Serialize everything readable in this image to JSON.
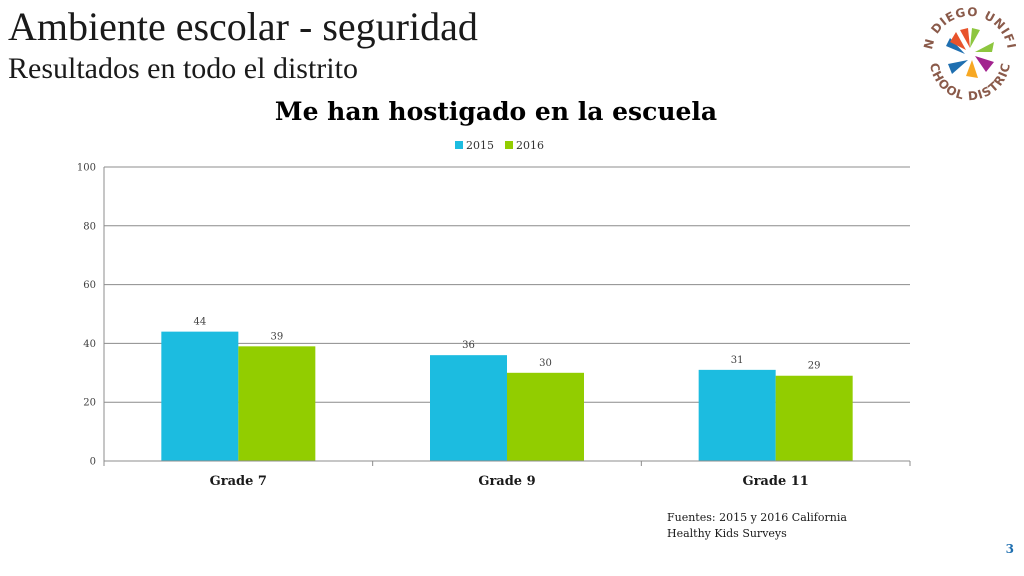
{
  "slide": {
    "title": "Ambiente escolar - seguridad",
    "subtitle": "Resultados en todo el distrito",
    "source_line1": "Fuentes: 2015 y 2016 California",
    "source_line2": "Healthy Kids Surveys",
    "page_number": "3"
  },
  "logo": {
    "text_top": "SAN DIEGO UNIFIED",
    "text_bottom": "SCHOOL DISTRICT",
    "ring_color": "#8a5a4a"
  },
  "chart_data": {
    "type": "bar",
    "title": "Me han hostigado en la escuela",
    "categories": [
      "Grade 7",
      "Grade 9",
      "Grade 11"
    ],
    "series": [
      {
        "name": "2015",
        "values": [
          44,
          36,
          31
        ],
        "color": "#1cbce0"
      },
      {
        "name": "2016",
        "values": [
          39,
          30,
          29
        ],
        "color": "#92cd00"
      }
    ],
    "ylim": [
      0,
      100
    ],
    "yticks": [
      0,
      20,
      40,
      60,
      80,
      100
    ],
    "grid": true,
    "legend_position": "top-center",
    "data_labels": true
  }
}
